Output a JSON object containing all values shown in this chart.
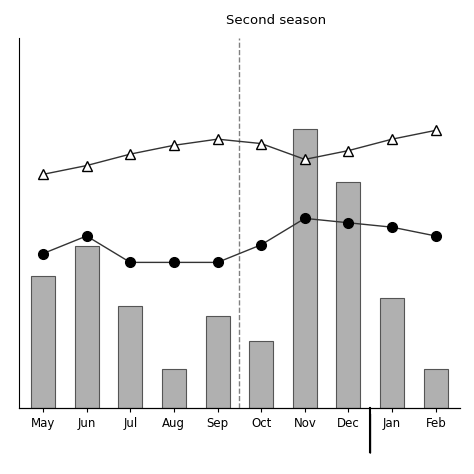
{
  "months": [
    "May",
    "Jun",
    "Jul",
    "Aug",
    "Sep",
    "Oct",
    "Nov",
    "Dec",
    "Jan",
    "Feb"
  ],
  "rainfall": [
    75,
    92,
    58,
    22,
    52,
    38,
    158,
    128,
    62,
    22
  ],
  "temp_max": [
    26.5,
    27.5,
    28.8,
    29.8,
    30.5,
    30.0,
    28.2,
    29.2,
    30.5,
    31.5
  ],
  "temp_min": [
    17.5,
    19.5,
    16.5,
    16.5,
    16.5,
    18.5,
    21.5,
    21.0,
    20.5,
    19.5
  ],
  "bar_color": "#b0b0b0",
  "bar_edge_color": "#555555",
  "line_color": "#333333",
  "dashed_line_x": 4.5,
  "season2_label": "Second season",
  "ylim_rain": [
    0,
    210
  ],
  "ylim_temp": [
    0,
    42
  ],
  "figsize": [
    4.74,
    4.74
  ],
  "dpi": 100
}
